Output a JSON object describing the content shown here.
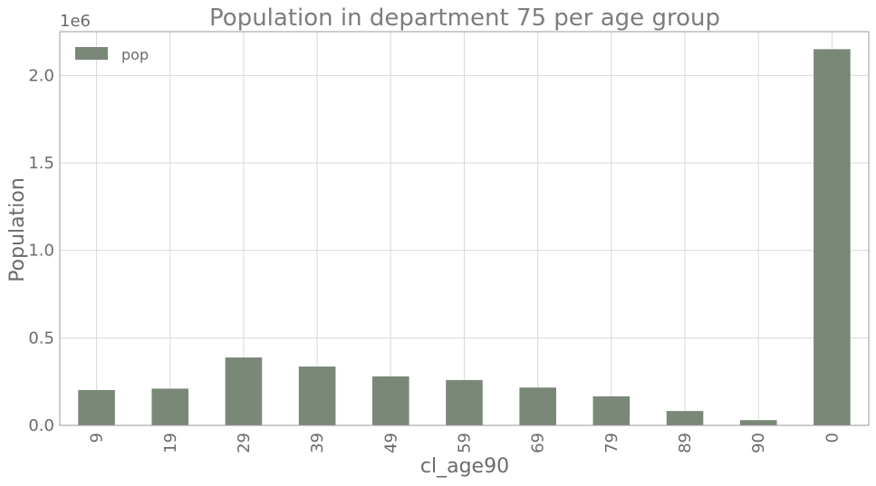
{
  "chart_data": {
    "type": "bar",
    "title": "Population in department 75 per age group",
    "xlabel": "cl_age90",
    "ylabel": "Population",
    "offset_text": "1e6",
    "categories": [
      "9",
      "19",
      "29",
      "39",
      "49",
      "59",
      "69",
      "79",
      "89",
      "90",
      "0"
    ],
    "series": [
      {
        "name": "pop",
        "values": [
          202000,
          210000,
          388000,
          336000,
          280000,
          259000,
          216000,
          166000,
          82000,
          30000,
          2150000
        ]
      }
    ],
    "ylim": [
      0,
      2250000
    ],
    "yticks": [
      0,
      500000,
      1000000,
      1500000,
      2000000
    ],
    "ytick_labels": [
      "0.0",
      "0.5",
      "1.0",
      "1.5",
      "2.0"
    ],
    "grid": true,
    "legend_position": "top-left",
    "colors": {
      "bar": "#7a8878",
      "grid": "#d9d9d9",
      "frame": "#999999",
      "text": "#6b6b6b"
    }
  }
}
